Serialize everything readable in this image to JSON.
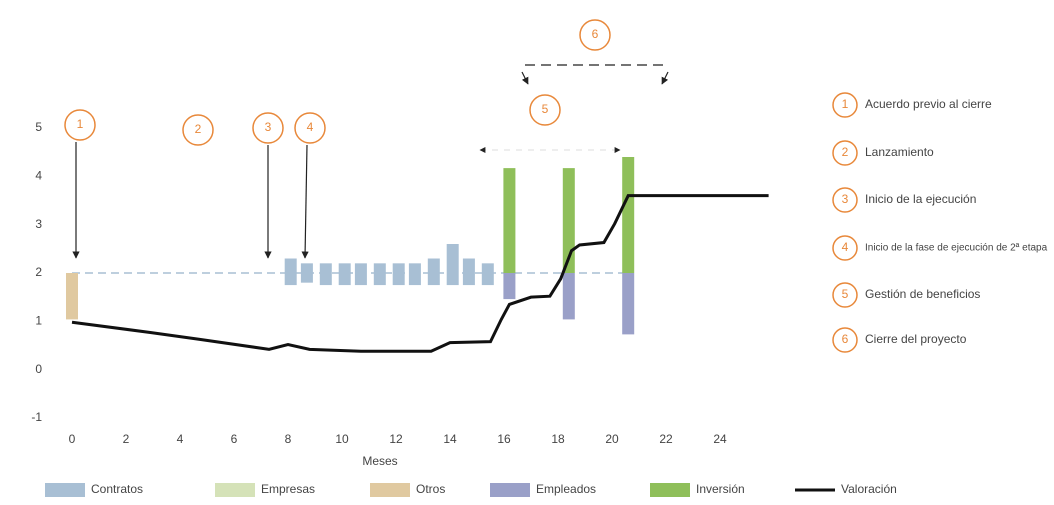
{
  "chart_data": {
    "type": "bar",
    "x_label": "Meses",
    "xlim": [
      0,
      26
    ],
    "xticks": [
      0,
      2,
      4,
      6,
      8,
      10,
      12,
      14,
      16,
      18,
      20,
      22,
      24
    ],
    "ylim": [
      -1,
      5
    ],
    "yticks": [
      -1,
      0,
      1,
      2,
      3,
      4,
      5
    ],
    "reference": {
      "value": 2,
      "x": [
        0,
        20.6
      ],
      "color": "#a8bfd4"
    },
    "series": [
      {
        "name": "Contratos",
        "type": "range-bar",
        "color": "#a8bfd4",
        "x": [
          8.1,
          8.7,
          9.4,
          10.1,
          10.7,
          11.4,
          12.1,
          12.7,
          13.4,
          14.1,
          14.7,
          15.4
        ],
        "values": [
          [
            1.75,
            2.3
          ],
          [
            1.8,
            2.2
          ],
          [
            1.75,
            2.2
          ],
          [
            1.75,
            2.2
          ],
          [
            1.75,
            2.2
          ],
          [
            1.75,
            2.2
          ],
          [
            1.75,
            2.2
          ],
          [
            1.75,
            2.2
          ],
          [
            1.75,
            2.3
          ],
          [
            1.75,
            2.6
          ],
          [
            1.75,
            2.3
          ],
          [
            1.75,
            2.2
          ]
        ]
      },
      {
        "name": "Empresas",
        "type": "range-bar",
        "color": "#d5e2b8",
        "x": [],
        "values": []
      },
      {
        "name": "Otros",
        "type": "range-bar",
        "color": "#e0c9a0",
        "x": [
          0
        ],
        "values": [
          [
            1.04,
            2
          ]
        ]
      },
      {
        "name": "Empleados",
        "type": "range-bar",
        "color": "#9aa0c8",
        "x": [
          16.2,
          18.4,
          20.6
        ],
        "values": [
          [
            1.46,
            2
          ],
          [
            1.04,
            2
          ],
          [
            0.73,
            2
          ]
        ]
      },
      {
        "name": "Inversión",
        "type": "range-bar",
        "color": "#8fbf5a",
        "x": [
          16.2,
          18.4,
          20.6
        ],
        "values": [
          [
            2,
            4.17
          ],
          [
            2,
            4.17
          ],
          [
            2,
            4.4
          ]
        ]
      },
      {
        "name": "Valoración",
        "type": "line",
        "color": "#111111",
        "x": [
          0,
          2.9,
          4.7,
          7.3,
          8.0,
          8.8,
          10.7,
          13.3,
          14.0,
          15.5,
          15.9,
          16.2,
          17.0,
          17.7,
          18.1,
          18.5,
          18.8,
          19.7,
          20.1,
          20.6,
          21.0,
          25.8
        ],
        "values": [
          0.98,
          0.77,
          0.63,
          0.42,
          0.52,
          0.42,
          0.38,
          0.38,
          0.56,
          0.58,
          1.04,
          1.35,
          1.5,
          1.52,
          1.88,
          2.46,
          2.58,
          2.63,
          3.02,
          3.6,
          3.6,
          3.6
        ]
      }
    ],
    "annotations": [
      {
        "label": "1",
        "text": "Acuerdo previo al cierre"
      },
      {
        "label": "2",
        "text": "Lanzamiento"
      },
      {
        "label": "3",
        "text": "Inicio de la ejecución"
      },
      {
        "label": "4",
        "text": "Inicio de la fase de ejecución de 2ª etapa"
      },
      {
        "label": "5",
        "text": "Gestión de beneficios"
      },
      {
        "label": "6",
        "text": "Cierre del proyecto"
      }
    ]
  }
}
